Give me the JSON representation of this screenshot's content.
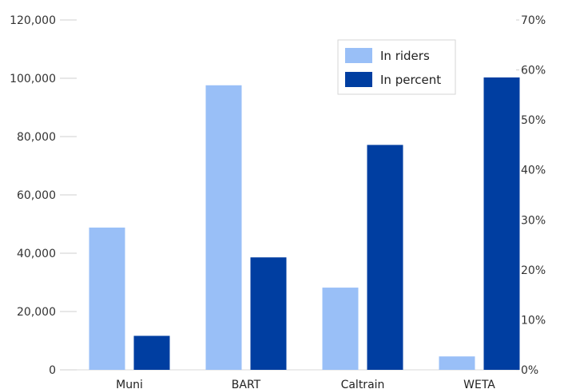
{
  "chart_data": {
    "type": "bar",
    "title": "",
    "xlabel": "",
    "categories": [
      "Muni",
      "BART",
      "Caltrain",
      "WETA"
    ],
    "series": [
      {
        "name": "In riders",
        "axis": "left",
        "color": "#99bff7",
        "values": [
          48800,
          97600,
          28200,
          4600
        ]
      },
      {
        "name": "In percent",
        "axis": "right",
        "color": "#003ea1",
        "values": [
          6.8,
          22.5,
          45.0,
          58.5
        ]
      }
    ],
    "left_axis": {
      "ylim": [
        0,
        120000
      ],
      "ticks": [
        0,
        20000,
        40000,
        60000,
        80000,
        100000,
        120000
      ],
      "tick_labels": [
        "0",
        "20,000",
        "40,000",
        "60,000",
        "80,000",
        "100,000",
        "120,000"
      ]
    },
    "right_axis": {
      "ylim": [
        0,
        70
      ],
      "ticks": [
        0,
        10,
        20,
        30,
        40,
        50,
        60,
        70
      ],
      "tick_labels": [
        "0%",
        "10%",
        "20%",
        "30%",
        "40%",
        "50%",
        "60%",
        "70%"
      ]
    },
    "grid": false,
    "legend": {
      "placement": "top-right"
    }
  }
}
